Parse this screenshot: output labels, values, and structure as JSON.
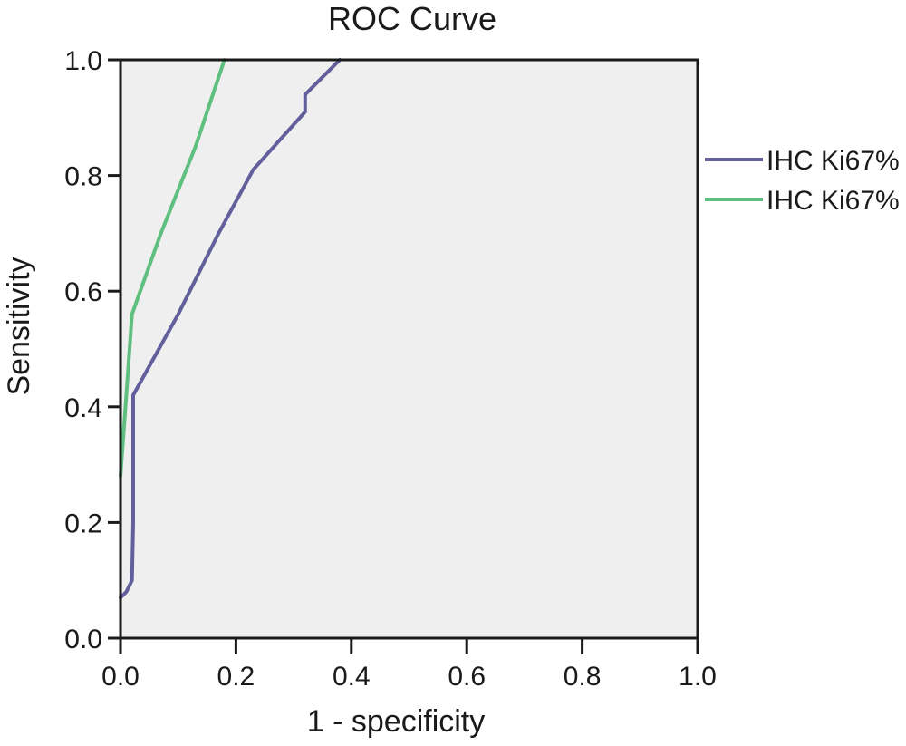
{
  "chart_data": {
    "type": "line",
    "title": "ROC Curve",
    "xlabel": "1 - specificity",
    "ylabel": "Sensitivity",
    "xlim": [
      0,
      1
    ],
    "ylim": [
      0,
      1
    ],
    "xticks": [
      "0.0",
      "0.2",
      "0.4",
      "0.6",
      "0.8",
      "1.0"
    ],
    "yticks": [
      "0.0",
      "0.2",
      "0.4",
      "0.6",
      "0.8",
      "1.0"
    ],
    "grid": false,
    "legend_position": "right",
    "series": [
      {
        "name": "IHC Ki67%",
        "color": "#625f9c",
        "points": [
          [
            0.0,
            0.07
          ],
          [
            0.01,
            0.08
          ],
          [
            0.02,
            0.1
          ],
          [
            0.022,
            0.2
          ],
          [
            0.022,
            0.42
          ],
          [
            0.1,
            0.56
          ],
          [
            0.17,
            0.7
          ],
          [
            0.23,
            0.81
          ],
          [
            0.32,
            0.91
          ],
          [
            0.32,
            0.94
          ],
          [
            0.38,
            1.0
          ]
        ]
      },
      {
        "name": "IHC Ki67%",
        "color": "#5fbf7f",
        "points": [
          [
            0.0,
            0.28
          ],
          [
            0.01,
            0.42
          ],
          [
            0.02,
            0.56
          ],
          [
            0.07,
            0.7
          ],
          [
            0.13,
            0.85
          ],
          [
            0.18,
            1.0
          ]
        ]
      }
    ]
  }
}
